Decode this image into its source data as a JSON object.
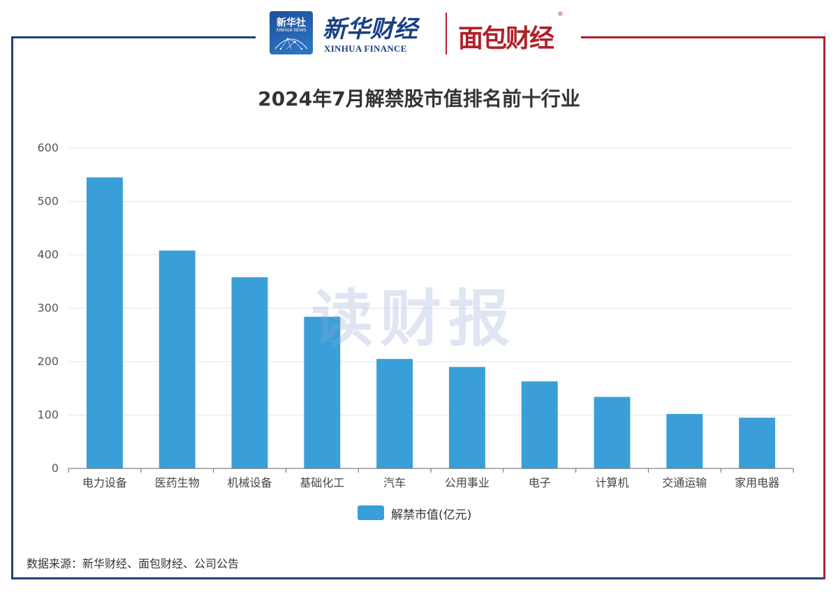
{
  "header": {
    "xinhua_badge_text": "新华社",
    "xinhua_badge_sub": "XINHUA NEWS",
    "brand_cn": "新华财经",
    "brand_en": "XINHUA FINANCE",
    "partner_logo": "面包财经",
    "registered_mark": "®"
  },
  "watermark": "读财报",
  "colors": {
    "bar": "#3a9fd8",
    "frame_left": "#1f3f7a",
    "frame_right": "#b0202a"
  },
  "chart_data": {
    "type": "bar",
    "title": "2024年7月解禁股市值排名前十行业",
    "categories": [
      "电力设备",
      "医药生物",
      "机械设备",
      "基础化工",
      "汽车",
      "公用事业",
      "电子",
      "计算机",
      "交通运输",
      "家用电器"
    ],
    "series": [
      {
        "name": "解禁市值(亿元)",
        "values": [
          545,
          408,
          358,
          284,
          205,
          190,
          163,
          134,
          102,
          95
        ]
      }
    ],
    "ylim": [
      0,
      600
    ],
    "yticks": [
      0,
      100,
      200,
      300,
      400,
      500,
      600
    ],
    "grid": true,
    "legend_position": "bottom-center"
  },
  "source_note": "数据来源：新华财经、面包财经、公司公告"
}
